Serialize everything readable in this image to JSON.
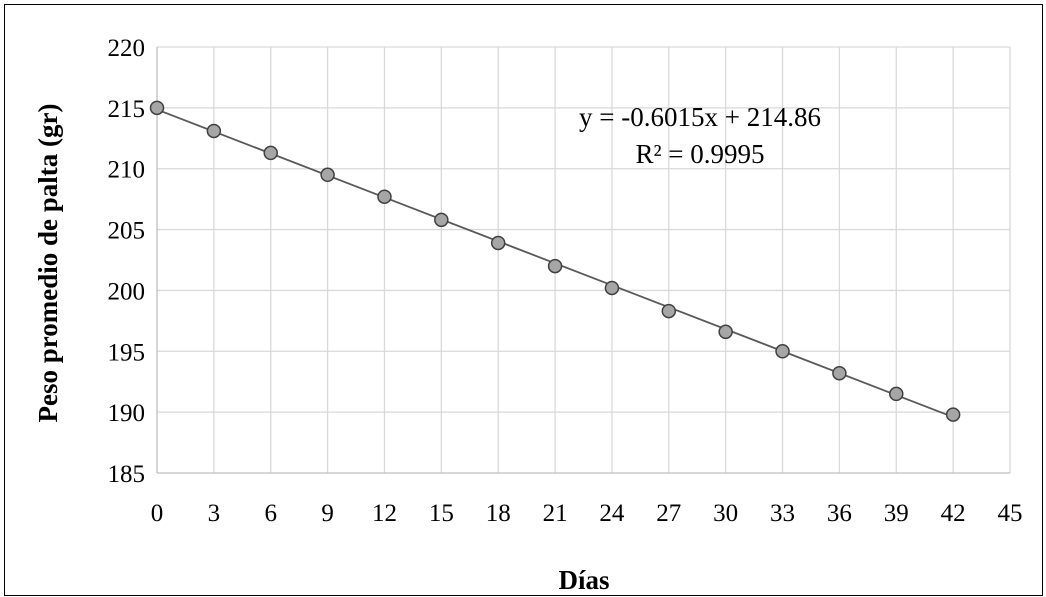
{
  "chart_data": {
    "type": "scatter",
    "title": "",
    "xlabel": "Días",
    "ylabel": "Peso promedio de palta (gr)",
    "xlim": [
      0,
      45
    ],
    "ylim": [
      185,
      220
    ],
    "xticks": [
      0,
      3,
      6,
      9,
      12,
      15,
      18,
      21,
      24,
      27,
      30,
      33,
      36,
      39,
      42,
      45
    ],
    "yticks": [
      185,
      190,
      195,
      200,
      205,
      210,
      215,
      220
    ],
    "grid": true,
    "legend": "none",
    "series": [
      {
        "x": [
          0,
          3,
          6,
          9,
          12,
          15,
          18,
          21,
          24,
          27,
          30,
          33,
          36,
          39,
          42
        ],
        "y": [
          215.0,
          213.1,
          211.3,
          209.5,
          207.7,
          205.8,
          203.9,
          202.0,
          200.2,
          198.3,
          196.6,
          195.0,
          193.2,
          191.5,
          189.8
        ]
      }
    ],
    "trendline": {
      "type": "linear",
      "slope": -0.6015,
      "intercept": 214.86,
      "equation_label": "y = -0.6015x + 214.86",
      "r2_label": "R² = 0.9995"
    },
    "colors": {
      "marker_fill": "#a6a6a6",
      "marker_stroke": "#404040",
      "trendline": "#595959",
      "grid": "#d9d9d9",
      "axis": "#bfbfbf"
    }
  }
}
